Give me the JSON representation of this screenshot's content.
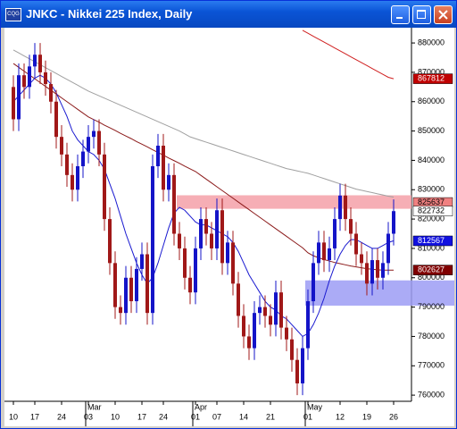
{
  "chart_data": {
    "type": "candlestick",
    "title": "JNKC - Nikkei 225 Index, Daily",
    "categories": [
      "10",
      null,
      null,
      null,
      "17",
      null,
      null,
      null,
      null,
      "24",
      null,
      null,
      null,
      null,
      "03",
      null,
      null,
      null,
      null,
      "10",
      null,
      null,
      null,
      null,
      "17",
      null,
      null,
      null,
      "24",
      null,
      null,
      null,
      null,
      null,
      "01",
      null,
      null,
      null,
      "07",
      null,
      null,
      null,
      null,
      "14",
      null,
      null,
      null,
      null,
      "21",
      null,
      null,
      null,
      null,
      null,
      null,
      "01",
      null,
      null,
      null,
      null,
      null,
      "12",
      null,
      null,
      null,
      null,
      "19",
      null,
      null,
      null,
      null,
      "26"
    ],
    "month_labels": [
      null,
      null,
      null,
      null,
      null,
      null,
      null,
      null,
      null,
      null,
      null,
      null,
      null,
      null,
      "Mar",
      null,
      null,
      null,
      null,
      null,
      null,
      null,
      null,
      null,
      null,
      null,
      null,
      null,
      null,
      null,
      null,
      null,
      null,
      null,
      "Apr",
      null,
      null,
      null,
      null,
      null,
      null,
      null,
      null,
      null,
      null,
      null,
      null,
      null,
      null,
      null,
      null,
      null,
      null,
      null,
      null,
      "May",
      null,
      null,
      null,
      null,
      null,
      null,
      null,
      null,
      null,
      null,
      null,
      null,
      null,
      null,
      null,
      null
    ],
    "open": [
      8650,
      8540,
      8690,
      8650,
      8720,
      8760,
      8700,
      8660,
      8600,
      8480,
      8420,
      8350,
      8300,
      8380,
      8430,
      8480,
      8500,
      8420,
      8200,
      8050,
      7900,
      7880,
      8000,
      7920,
      8030,
      8080,
      7880,
      8380,
      8450,
      8300,
      8350,
      8150,
      8100,
      8000,
      7950,
      8100,
      8200,
      8150,
      8100,
      8230,
      8050,
      8120,
      7980,
      7870,
      7800,
      7760,
      7880,
      7900,
      7870,
      7840,
      7950,
      7830,
      7790,
      7720,
      7640,
      7760,
      7920,
      8050,
      8120,
      8060,
      8100,
      8200,
      8280,
      8200,
      8150,
      8080,
      8050,
      7980,
      8060,
      8000,
      8050,
      8150
    ],
    "high": [
      8690,
      8730,
      8730,
      8760,
      8800,
      8800,
      8740,
      8700,
      8640,
      8520,
      8460,
      8390,
      8420,
      8470,
      8520,
      8540,
      8540,
      8460,
      8240,
      8090,
      7940,
      8040,
      8040,
      8070,
      8120,
      8120,
      8420,
      8490,
      8490,
      8390,
      8390,
      8190,
      8140,
      8040,
      8140,
      8240,
      8240,
      8190,
      8270,
      8270,
      8160,
      8160,
      8020,
      7910,
      7840,
      7920,
      7940,
      7940,
      7910,
      7990,
      7990,
      7870,
      7830,
      7760,
      7800,
      7960,
      8090,
      8160,
      8160,
      8140,
      8240,
      8320,
      8320,
      8240,
      8190,
      8120,
      8090,
      8100,
      8100,
      8090,
      8190,
      8267
    ],
    "low": [
      8500,
      8500,
      8610,
      8610,
      8680,
      8660,
      8620,
      8560,
      8440,
      8380,
      8310,
      8260,
      8260,
      8340,
      8390,
      8440,
      8380,
      8160,
      8010,
      7860,
      7840,
      7840,
      7880,
      7880,
      7990,
      7840,
      7840,
      8340,
      8260,
      8260,
      8110,
      8060,
      7960,
      7910,
      7910,
      8060,
      8110,
      8060,
      8060,
      8010,
      8010,
      7940,
      7830,
      7760,
      7720,
      7720,
      7840,
      7830,
      7800,
      7800,
      7790,
      7750,
      7680,
      7600,
      7600,
      7720,
      7880,
      8010,
      8020,
      8020,
      8060,
      8160,
      8160,
      8110,
      8040,
      8010,
      7940,
      7940,
      7960,
      7960,
      8010,
      8110
    ],
    "close": [
      8540,
      8690,
      8650,
      8720,
      8760,
      8700,
      8660,
      8600,
      8480,
      8420,
      8350,
      8300,
      8380,
      8430,
      8480,
      8500,
      8420,
      8200,
      8050,
      7900,
      7880,
      8000,
      7920,
      8030,
      8080,
      7880,
      8380,
      8450,
      8300,
      8350,
      8150,
      8100,
      8000,
      7950,
      8100,
      8200,
      8150,
      8100,
      8230,
      8050,
      8120,
      7980,
      7870,
      7800,
      7760,
      7880,
      7900,
      7870,
      7840,
      7950,
      7830,
      7790,
      7720,
      7640,
      7760,
      7920,
      8050,
      8120,
      8060,
      8100,
      8200,
      8280,
      8200,
      8150,
      8080,
      8050,
      7980,
      8060,
      8000,
      8050,
      8150,
      8227
    ],
    "up_color": "#1414c8",
    "down_color": "#a01818",
    "overlays": [
      {
        "color": "#a0a0a0",
        "values": [
          8776,
          8766,
          8756,
          8746,
          8736,
          8726,
          8716,
          8706,
          8696,
          8686,
          8676,
          8666,
          8656,
          8646,
          8636,
          8628,
          8620,
          8612,
          8604,
          8596,
          8588,
          8580,
          8572,
          8564,
          8556,
          8548,
          8540,
          8532,
          8524,
          8516,
          8508,
          8500,
          8490,
          8480,
          8474,
          8468,
          8462,
          8456,
          8450,
          8444,
          8438,
          8432,
          8426,
          8420,
          8414,
          8408,
          8402,
          8396,
          8390,
          8384,
          8378,
          8372,
          8368,
          8364,
          8360,
          8356,
          8350,
          8344,
          8338,
          8332,
          8326,
          8320,
          8314,
          8308,
          8302,
          8298,
          8294,
          8290,
          8286,
          8282,
          8278,
          8275
        ]
      },
      {
        "color": "#8b1a1a",
        "values": [
          8730,
          8717,
          8704,
          8691,
          8678,
          8665,
          8652,
          8639,
          8626,
          8613,
          8600,
          8587,
          8574,
          8561,
          8548,
          8539,
          8530,
          8520,
          8511,
          8502,
          8492,
          8483,
          8474,
          8464,
          8455,
          8446,
          8436,
          8427,
          8418,
          8408,
          8399,
          8390,
          8380,
          8371,
          8362,
          8349,
          8336,
          8323,
          8310,
          8297,
          8284,
          8271,
          8258,
          8245,
          8232,
          8219,
          8206,
          8193,
          8180,
          8167,
          8154,
          8141,
          8128,
          8115,
          8102,
          8085,
          8075,
          8068,
          8062,
          8057,
          8052,
          8048,
          8044,
          8040,
          8037,
          8034,
          8031,
          8029,
          8027,
          8026,
          8026,
          8026
        ]
      },
      {
        "color": "#1a1ad0",
        "values": [
          8600,
          8620,
          8640,
          8660,
          8680,
          8690,
          8680,
          8660,
          8630,
          8590,
          8550,
          8500,
          8470,
          8450,
          8430,
          8420,
          8400,
          8370,
          8320,
          8270,
          8210,
          8150,
          8100,
          8050,
          8010,
          7980,
          8000,
          8050,
          8110,
          8170,
          8220,
          8240,
          8230,
          8210,
          8190,
          8180,
          8180,
          8170,
          8160,
          8150,
          8140,
          8120,
          8090,
          8050,
          8010,
          7980,
          7950,
          7920,
          7900,
          7890,
          7870,
          7860,
          7840,
          7820,
          7800,
          7810,
          7840,
          7880,
          7930,
          7990,
          8040,
          8080,
          8110,
          8130,
          8130,
          8120,
          8110,
          8100,
          8100,
          8110,
          8120,
          8126
        ]
      },
      {
        "color": "#d02020",
        "values": [
          null,
          null,
          null,
          null,
          null,
          null,
          null,
          null,
          null,
          null,
          null,
          null,
          null,
          null,
          null,
          null,
          null,
          null,
          null,
          null,
          null,
          null,
          null,
          null,
          null,
          null,
          null,
          null,
          null,
          null,
          null,
          null,
          null,
          null,
          null,
          null,
          null,
          null,
          null,
          null,
          null,
          null,
          null,
          null,
          null,
          null,
          null,
          null,
          null,
          null,
          null,
          null,
          null,
          null,
          8843,
          8833,
          8823,
          8813,
          8803,
          8793,
          8783,
          8773,
          8763,
          8753,
          8743,
          8733,
          8723,
          8713,
          8703,
          8693,
          8683,
          8678
        ]
      }
    ],
    "zones": [
      {
        "from": 8235,
        "to": 8281,
        "start": 31,
        "color": "#f4a0a8"
      },
      {
        "from": 7905,
        "to": 7991,
        "start": 55,
        "color": "#9c9cf4"
      }
    ],
    "price_labels": [
      {
        "value": 8678.12,
        "label": "867812",
        "color": "#c00000",
        "text_color": "#ffffff"
      },
      {
        "value": 8256.37,
        "label": "825637",
        "color": "#f08080",
        "text_color": "#000000"
      },
      {
        "value": 8227.32,
        "label": "822732",
        "color": "#ffffff",
        "text_color": "#000000"
      },
      {
        "value": 8125.67,
        "label": "812567",
        "color": "#1010e0",
        "text_color": "#ffffff"
      },
      {
        "value": 8026.27,
        "label": "802627",
        "color": "#800000",
        "text_color": "#ffffff"
      }
    ],
    "ylim": [
      7579,
      8852
    ],
    "yticks": [
      {
        "value": 8800,
        "label": "880000"
      },
      {
        "value": 8700,
        "label": "870000"
      },
      {
        "value": 8600,
        "label": "860000"
      },
      {
        "value": 8500,
        "label": "850000"
      },
      {
        "value": 8400,
        "label": "840000"
      },
      {
        "value": 8300,
        "label": "830000"
      },
      {
        "value": 8200,
        "label": "820000"
      },
      {
        "value": 8100,
        "label": "810000"
      },
      {
        "value": 8000,
        "label": "800000"
      },
      {
        "value": 7900,
        "label": "790000"
      },
      {
        "value": 7800,
        "label": "780000"
      },
      {
        "value": 7700,
        "label": "770000"
      },
      {
        "value": 7600,
        "label": "760000"
      }
    ]
  }
}
